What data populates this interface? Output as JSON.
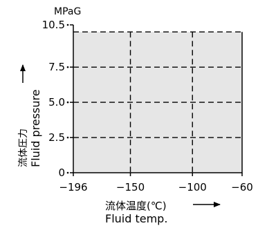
{
  "chart_data": {
    "type": "area",
    "unit_label": "MPaG",
    "ylabel_jp": "流体圧力",
    "ylabel_en": "Fluid pressure",
    "xlabel_jp": "流体温度(℃)",
    "xlabel_en": "Fluid temp.",
    "xlim": [
      -196,
      -60
    ],
    "ylim": [
      0,
      10.5
    ],
    "x_ticks": [
      -196,
      -150,
      -100,
      -60
    ],
    "x_tick_labels": [
      "−196",
      "−150",
      "−100",
      "−60"
    ],
    "y_ticks": [
      0,
      2.5,
      5.0,
      7.5,
      10.5
    ],
    "y_tick_labels": [
      "0",
      "2.5",
      "5.0",
      "7.5",
      "10.5"
    ],
    "region": {
      "x_range": [
        -196,
        -60
      ],
      "y_range": [
        0,
        10.0
      ]
    },
    "region_color": "#e6e6e6",
    "grid": "dashed",
    "v_gridlines": [
      -150,
      -100
    ],
    "h_gridlines": [
      2.5,
      5.0,
      7.5,
      10.0
    ]
  }
}
